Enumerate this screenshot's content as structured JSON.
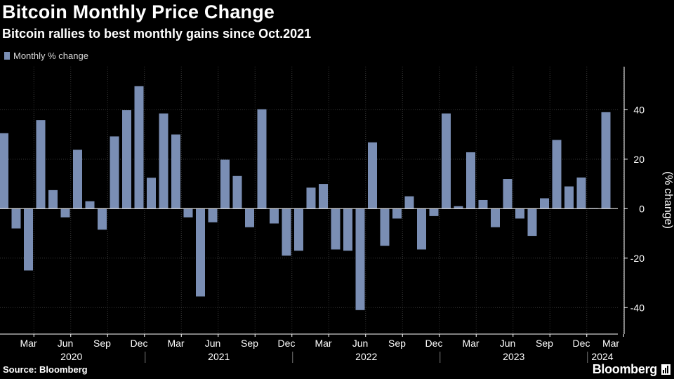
{
  "header": {
    "title": "Bitcoin Monthly Price Change",
    "subtitle": "Bitcoin rallies to best monthly gains since Oct.2021"
  },
  "legend": {
    "label": "Monthly % change"
  },
  "footer": {
    "source": "Source: Bloomberg",
    "brand": "Bloomberg"
  },
  "colors": {
    "bar": "#7a8eb4",
    "background": "#000000",
    "grid": "#3a3a3a",
    "text": "#ffffff"
  },
  "chart_data": {
    "type": "bar",
    "title": "Bitcoin Monthly Price Change",
    "subtitle": "Bitcoin rallies to best monthly gains since Oct.2021",
    "ylabel": "(% change)",
    "ylim": [
      -50,
      57
    ],
    "y_ticks": [
      40,
      20,
      0,
      -20,
      -40
    ],
    "y_tick_labels": [
      "40",
      "20",
      "0",
      "-20",
      "-40"
    ],
    "y_axis_side": "right",
    "grid": true,
    "legend": "top-left",
    "series": [
      {
        "name": "Monthly % change",
        "values": [
          30.5,
          -8,
          -25,
          35.8,
          7.5,
          -3.5,
          23.8,
          3,
          -8.5,
          29.2,
          39.8,
          49.5,
          12.5,
          38.5,
          30,
          -3.5,
          -35.5,
          -5.5,
          19.8,
          13.2,
          -7.5,
          40.2,
          -6,
          -19,
          -17,
          8.5,
          10,
          -16.5,
          -17,
          -41,
          26.8,
          -15,
          -4,
          5,
          -16.5,
          -3,
          38.5,
          1,
          22.8,
          3.5,
          -7.5,
          12,
          -4,
          -11,
          4.2,
          27.8,
          9,
          12.6,
          0.2,
          39
        ]
      }
    ],
    "categories": [
      "Jan 2020",
      "Feb 2020",
      "Mar 2020",
      "Apr 2020",
      "May 2020",
      "Jun 2020",
      "Jul 2020",
      "Aug 2020",
      "Sep 2020",
      "Oct 2020",
      "Nov 2020",
      "Dec 2020",
      "Jan 2021",
      "Feb 2021",
      "Mar 2021",
      "Apr 2021",
      "May 2021",
      "Jun 2021",
      "Jul 2021",
      "Aug 2021",
      "Sep 2021",
      "Oct 2021",
      "Nov 2021",
      "Dec 2021",
      "Jan 2022",
      "Feb 2022",
      "Mar 2022",
      "Apr 2022",
      "May 2022",
      "Jun 2022",
      "Jul 2022",
      "Aug 2022",
      "Sep 2022",
      "Oct 2022",
      "Nov 2022",
      "Dec 2022",
      "Jan 2023",
      "Feb 2023",
      "Mar 2023",
      "Apr 2023",
      "May 2023",
      "Jun 2023",
      "Jul 2023",
      "Aug 2023",
      "Sep 2023",
      "Oct 2023",
      "Nov 2023",
      "Dec 2023",
      "Jan 2024",
      "Feb 2024"
    ],
    "x_month_ticks": [
      {
        "label": "Mar",
        "index": 2
      },
      {
        "label": "Jun",
        "index": 5
      },
      {
        "label": "Sep",
        "index": 8
      },
      {
        "label": "Dec",
        "index": 11
      },
      {
        "label": "Mar",
        "index": 14
      },
      {
        "label": "Jun",
        "index": 17
      },
      {
        "label": "Sep",
        "index": 20
      },
      {
        "label": "Dec",
        "index": 23
      },
      {
        "label": "Mar",
        "index": 26
      },
      {
        "label": "Jun",
        "index": 29
      },
      {
        "label": "Sep",
        "index": 32
      },
      {
        "label": "Dec",
        "index": 35
      },
      {
        "label": "Mar",
        "index": 38
      },
      {
        "label": "Jun",
        "index": 41
      },
      {
        "label": "Sep",
        "index": 44
      },
      {
        "label": "Dec",
        "index": 47
      },
      {
        "label": "Mar",
        "index": 50
      }
    ],
    "x_year_labels": [
      {
        "label": "2020",
        "start": 0,
        "end": 12
      },
      {
        "label": "2021",
        "start": 12,
        "end": 24
      },
      {
        "label": "2022",
        "start": 24,
        "end": 36
      },
      {
        "label": "2023",
        "start": 36,
        "end": 48
      },
      {
        "label": "2024",
        "start": 48,
        "end": 51
      }
    ]
  }
}
